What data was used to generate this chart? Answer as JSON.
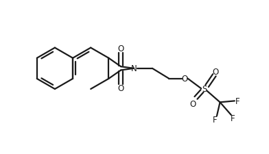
{
  "bg_color": "#ffffff",
  "line_color": "#1a1a1a",
  "line_width": 1.6,
  "figsize": [
    3.92,
    2.26
  ],
  "dpi": 100,
  "xlim": [
    0,
    10
  ],
  "ylim": [
    0,
    5.77
  ]
}
